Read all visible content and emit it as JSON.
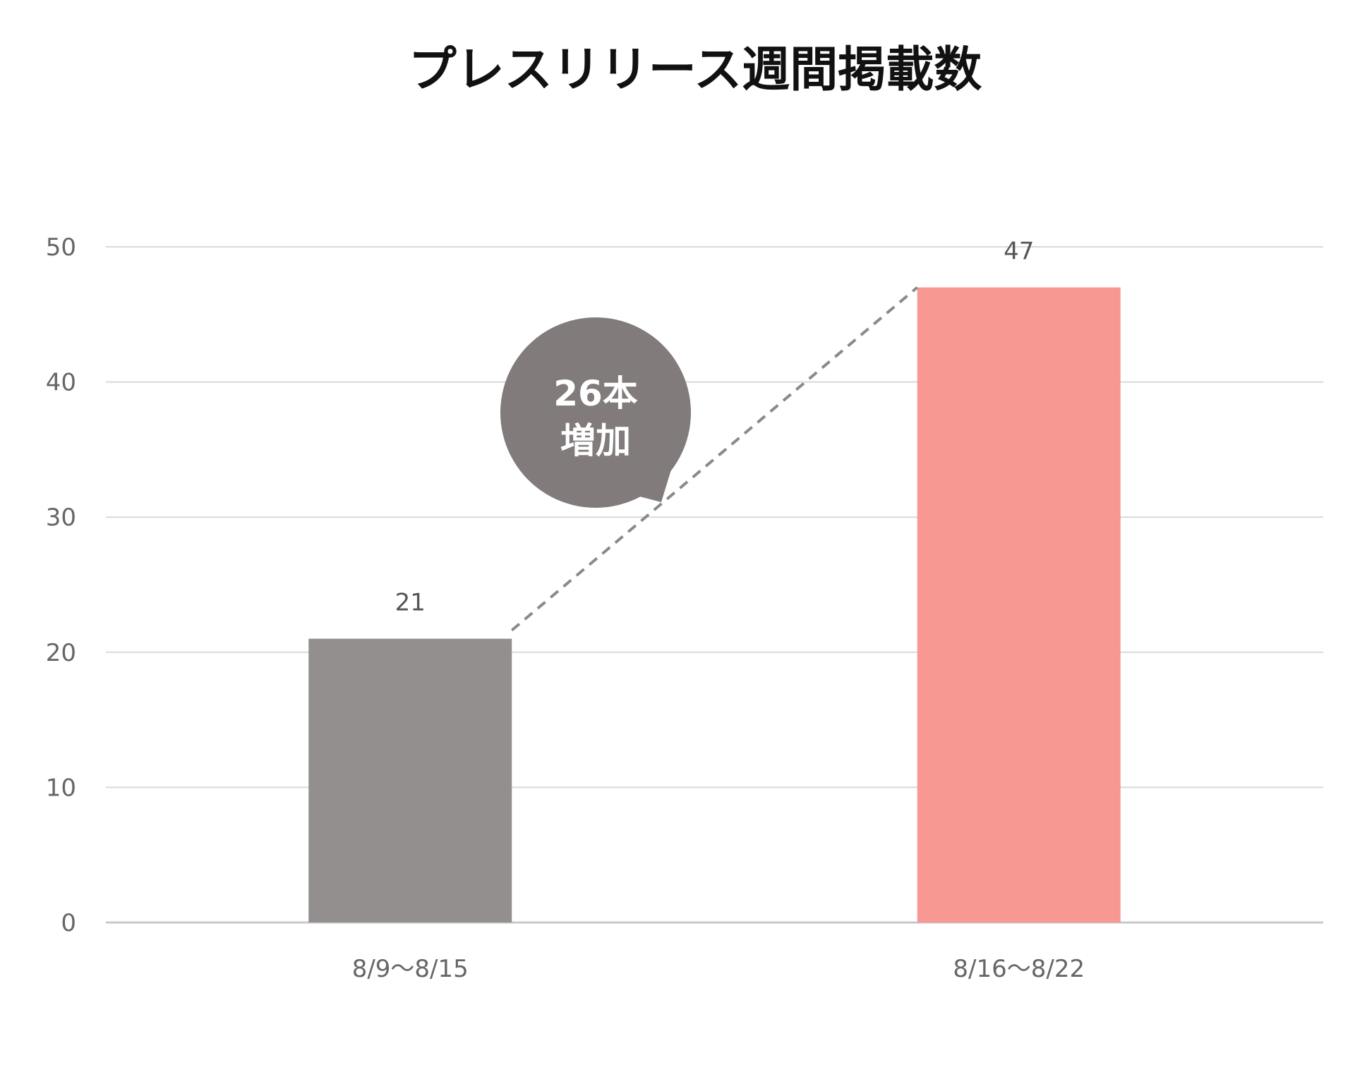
{
  "chart_data": {
    "type": "bar",
    "title": "プレスリリース週間掲載数",
    "categories": [
      "8/9〜8/15",
      "8/16〜8/22"
    ],
    "values": [
      21,
      47
    ],
    "data_labels": [
      "21",
      "47"
    ],
    "bar_colors": [
      "#948f8f",
      "#f89893"
    ],
    "ylim": [
      0,
      50
    ],
    "yticks": [
      0,
      10,
      20,
      30,
      40,
      50
    ],
    "grid": true,
    "legend": "none",
    "xlabel": "",
    "ylabel": "",
    "annotation": {
      "lines": [
        "26本",
        "増加"
      ],
      "color": "#817b7b",
      "connector": "dashed"
    }
  }
}
